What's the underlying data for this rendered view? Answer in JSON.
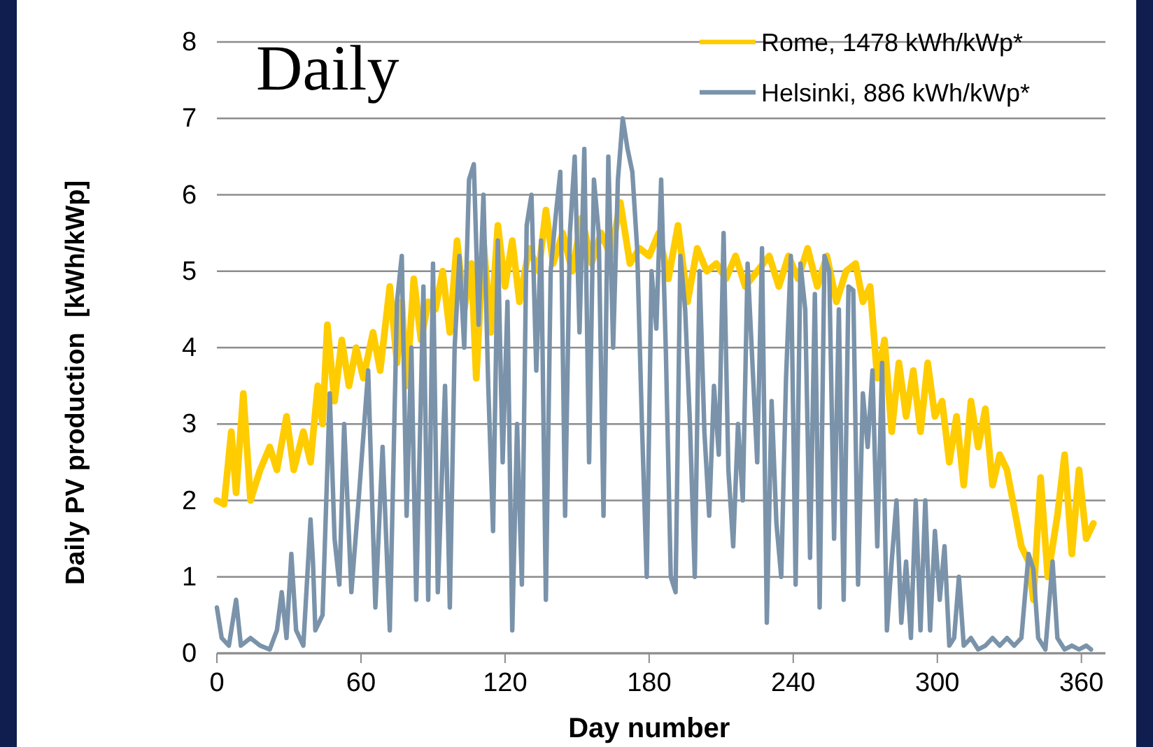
{
  "chart_data": {
    "type": "line",
    "title": "Daily",
    "xlabel": "Day number",
    "ylabel": "Daily PV production  [kWh/kWp]",
    "xlim": [
      0,
      370
    ],
    "xticks": [
      0,
      60,
      120,
      180,
      240,
      300,
      360
    ],
    "ylim": [
      0,
      8
    ],
    "yticks": [
      0,
      1,
      2,
      3,
      4,
      5,
      6,
      7,
      8
    ],
    "grid": "y",
    "legend": "top right",
    "line_style": "solid",
    "marker": "none",
    "series": [
      {
        "name": "Rome, 1478 kWh/kWp*",
        "color": "#ffcc00",
        "x": [
          0,
          3,
          6,
          8,
          11,
          14,
          18,
          22,
          25,
          29,
          32,
          36,
          39,
          42,
          44,
          46,
          49,
          52,
          55,
          58,
          61,
          65,
          68,
          72,
          75,
          77,
          79,
          82,
          85,
          88,
          91,
          94,
          97,
          100,
          103,
          106,
          108,
          111,
          114,
          117,
          120,
          123,
          126,
          130,
          134,
          137,
          140,
          144,
          148,
          152,
          156,
          160,
          164,
          168,
          172,
          176,
          180,
          184,
          188,
          192,
          196,
          200,
          204,
          208,
          212,
          216,
          220,
          225,
          230,
          234,
          238,
          242,
          246,
          250,
          254,
          258,
          262,
          266,
          269,
          272,
          275,
          278,
          281,
          284,
          287,
          290,
          293,
          296,
          299,
          302,
          305,
          308,
          311,
          314,
          317,
          320,
          323,
          326,
          329,
          332,
          335,
          338,
          340,
          343,
          346,
          350,
          353,
          356,
          359,
          362,
          365
        ],
        "values": [
          2.0,
          1.95,
          2.9,
          2.1,
          3.4,
          2.0,
          2.4,
          2.7,
          2.4,
          3.1,
          2.4,
          2.9,
          2.5,
          3.5,
          3.0,
          4.3,
          3.3,
          4.1,
          3.5,
          4.0,
          3.6,
          4.2,
          3.7,
          4.8,
          3.8,
          4.6,
          3.5,
          4.9,
          4.1,
          4.6,
          4.5,
          5.0,
          4.2,
          5.4,
          4.5,
          5.1,
          3.6,
          5.4,
          4.2,
          5.6,
          4.8,
          5.4,
          4.6,
          5.3,
          5.0,
          5.8,
          5.1,
          5.5,
          5.0,
          5.7,
          5.1,
          5.5,
          5.2,
          5.9,
          5.1,
          5.3,
          5.2,
          5.5,
          4.9,
          5.6,
          4.6,
          5.3,
          5.0,
          5.1,
          4.9,
          5.2,
          4.8,
          5.0,
          5.2,
          4.8,
          5.2,
          4.9,
          5.3,
          4.8,
          5.2,
          4.6,
          5.0,
          5.1,
          4.6,
          4.8,
          3.6,
          4.1,
          2.9,
          3.8,
          3.1,
          3.7,
          2.9,
          3.8,
          3.1,
          3.3,
          2.5,
          3.1,
          2.2,
          3.3,
          2.7,
          3.2,
          2.2,
          2.6,
          2.4,
          1.9,
          1.4,
          1.2,
          0.7,
          2.3,
          1.0,
          1.8,
          2.6,
          1.3,
          2.4,
          1.5,
          1.7
        ]
      },
      {
        "name": "Helsinki, 886 kWh/kWp*",
        "color": "#7a93aa",
        "x": [
          0,
          2,
          5,
          8,
          10,
          14,
          18,
          22,
          25,
          27,
          29,
          31,
          33,
          36,
          38,
          39,
          40,
          41,
          44,
          47,
          49,
          51,
          53,
          56,
          59,
          63,
          66,
          69,
          72,
          75,
          77,
          79,
          81,
          83,
          86,
          88,
          90,
          92,
          95,
          97,
          99,
          101,
          103,
          105,
          107,
          109,
          111,
          113,
          115,
          117,
          119,
          121,
          123,
          125,
          127,
          129,
          131,
          133,
          135,
          137,
          139,
          141,
          143,
          145,
          147,
          149,
          151,
          153,
          155,
          157,
          159,
          161,
          163,
          165,
          167,
          169,
          171,
          173,
          175,
          177,
          179,
          181,
          183,
          185,
          187,
          189,
          191,
          193,
          195,
          197,
          199,
          201,
          203,
          205,
          207,
          209,
          211,
          213,
          215,
          217,
          219,
          221,
          223,
          225,
          227,
          229,
          231,
          233,
          235,
          237,
          239,
          241,
          243,
          245,
          247,
          249,
          251,
          253,
          255,
          257,
          259,
          261,
          263,
          265,
          267,
          269,
          271,
          273,
          275,
          277,
          279,
          281,
          283,
          285,
          287,
          289,
          291,
          293,
          295,
          297,
          299,
          301,
          303,
          305,
          307,
          309,
          311,
          314,
          317,
          320,
          323,
          326,
          329,
          332,
          335,
          338,
          340,
          342,
          345,
          348,
          350,
          353,
          356,
          359,
          362,
          364
        ],
        "values": [
          0.6,
          0.2,
          0.1,
          0.7,
          0.1,
          0.2,
          0.1,
          0.05,
          0.3,
          0.8,
          0.2,
          1.3,
          0.3,
          0.1,
          1.2,
          1.75,
          1.2,
          0.3,
          0.5,
          3.4,
          1.5,
          0.9,
          3.0,
          0.8,
          2.0,
          3.7,
          0.6,
          2.7,
          0.3,
          4.6,
          5.2,
          1.8,
          4.0,
          0.7,
          4.8,
          0.7,
          5.1,
          0.8,
          3.5,
          0.6,
          4.0,
          5.2,
          4.0,
          6.2,
          6.4,
          4.3,
          6.0,
          3.5,
          1.6,
          5.4,
          2.5,
          4.6,
          0.3,
          3.0,
          0.9,
          5.6,
          6.0,
          3.7,
          5.4,
          0.7,
          5.0,
          5.7,
          6.3,
          1.8,
          5.5,
          6.5,
          4.2,
          6.6,
          2.5,
          6.2,
          5.5,
          1.8,
          6.5,
          4.0,
          6.2,
          7.0,
          6.6,
          6.3,
          5.3,
          3.0,
          1.0,
          5.0,
          4.25,
          6.2,
          3.9,
          1.0,
          0.8,
          5.2,
          4.5,
          3.0,
          1.0,
          5.0,
          2.9,
          1.8,
          3.5,
          2.6,
          5.5,
          2.4,
          1.4,
          3.0,
          2.0,
          5.1,
          3.8,
          2.5,
          5.3,
          0.4,
          3.3,
          1.7,
          1.0,
          3.6,
          5.2,
          0.9,
          5.1,
          4.5,
          1.25,
          4.7,
          0.6,
          5.2,
          5.0,
          1.5,
          4.5,
          0.7,
          4.8,
          4.75,
          0.9,
          3.4,
          2.7,
          3.7,
          1.4,
          3.8,
          0.3,
          1.2,
          2.0,
          0.4,
          1.2,
          0.2,
          2.0,
          0.3,
          2.0,
          0.3,
          1.6,
          0.7,
          1.4,
          0.1,
          0.2,
          1.0,
          0.1,
          0.2,
          0.05,
          0.1,
          0.2,
          0.1,
          0.2,
          0.1,
          0.2,
          1.3,
          1.1,
          0.2,
          0.05,
          1.2,
          0.2,
          0.05,
          0.1,
          0.05,
          0.1,
          0.05
        ]
      }
    ]
  }
}
